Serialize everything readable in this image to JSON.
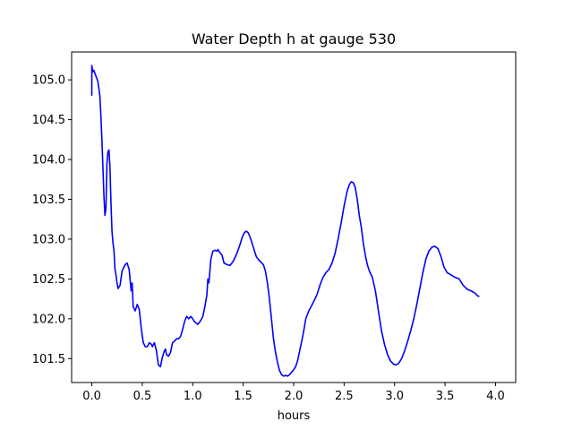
{
  "chart_data": {
    "type": "line",
    "title": "Water Depth h at gauge 530",
    "xlabel": "hours",
    "ylabel": "",
    "xlim": [
      -0.2,
      4.2
    ],
    "ylim": [
      101.2,
      105.35
    ],
    "xticks": [
      0.0,
      0.5,
      1.0,
      1.5,
      2.0,
      2.5,
      3.0,
      3.5,
      4.0
    ],
    "xtick_labels": [
      "0.0",
      "0.5",
      "1.0",
      "1.5",
      "2.0",
      "2.5",
      "3.0",
      "3.5",
      "4.0"
    ],
    "yticks": [
      101.5,
      102.0,
      102.5,
      103.0,
      103.5,
      104.0,
      104.5,
      105.0
    ],
    "ytick_labels": [
      "101.5",
      "102.0",
      "102.5",
      "103.0",
      "103.5",
      "104.0",
      "104.5",
      "105.0"
    ],
    "grid": false,
    "series": [
      {
        "color": "#0000ff",
        "points": [
          [
            0.0,
            104.8
          ],
          [
            0.0,
            105.18
          ],
          [
            0.01,
            105.1
          ],
          [
            0.02,
            105.12
          ],
          [
            0.04,
            105.05
          ],
          [
            0.06,
            104.98
          ],
          [
            0.08,
            104.8
          ],
          [
            0.09,
            104.55
          ],
          [
            0.1,
            104.25
          ],
          [
            0.11,
            103.9
          ],
          [
            0.12,
            103.55
          ],
          [
            0.13,
            103.3
          ],
          [
            0.14,
            103.38
          ],
          [
            0.15,
            103.95
          ],
          [
            0.16,
            104.1
          ],
          [
            0.17,
            104.12
          ],
          [
            0.18,
            103.9
          ],
          [
            0.19,
            103.45
          ],
          [
            0.2,
            103.1
          ],
          [
            0.21,
            102.95
          ],
          [
            0.22,
            102.85
          ],
          [
            0.23,
            102.62
          ],
          [
            0.24,
            102.55
          ],
          [
            0.25,
            102.45
          ],
          [
            0.26,
            102.38
          ],
          [
            0.28,
            102.42
          ],
          [
            0.3,
            102.6
          ],
          [
            0.33,
            102.68
          ],
          [
            0.35,
            102.7
          ],
          [
            0.37,
            102.62
          ],
          [
            0.39,
            102.35
          ],
          [
            0.4,
            102.45
          ],
          [
            0.41,
            102.15
          ],
          [
            0.43,
            102.1
          ],
          [
            0.45,
            102.18
          ],
          [
            0.47,
            102.12
          ],
          [
            0.49,
            101.88
          ],
          [
            0.51,
            101.7
          ],
          [
            0.53,
            101.65
          ],
          [
            0.55,
            101.65
          ],
          [
            0.57,
            101.7
          ],
          [
            0.59,
            101.68
          ],
          [
            0.6,
            101.65
          ],
          [
            0.62,
            101.7
          ],
          [
            0.64,
            101.6
          ],
          [
            0.66,
            101.42
          ],
          [
            0.68,
            101.4
          ],
          [
            0.7,
            101.52
          ],
          [
            0.72,
            101.6
          ],
          [
            0.73,
            101.62
          ],
          [
            0.74,
            101.55
          ],
          [
            0.76,
            101.53
          ],
          [
            0.78,
            101.58
          ],
          [
            0.8,
            101.7
          ],
          [
            0.82,
            101.72
          ],
          [
            0.84,
            101.75
          ],
          [
            0.86,
            101.75
          ],
          [
            0.88,
            101.78
          ],
          [
            0.9,
            101.87
          ],
          [
            0.92,
            101.97
          ],
          [
            0.94,
            102.03
          ],
          [
            0.96,
            102.0
          ],
          [
            0.98,
            102.03
          ],
          [
            1.0,
            102.0
          ],
          [
            1.02,
            101.96
          ],
          [
            1.05,
            101.93
          ],
          [
            1.08,
            101.98
          ],
          [
            1.1,
            102.03
          ],
          [
            1.12,
            102.15
          ],
          [
            1.14,
            102.3
          ],
          [
            1.15,
            102.5
          ],
          [
            1.16,
            102.45
          ],
          [
            1.17,
            102.6
          ],
          [
            1.18,
            102.75
          ],
          [
            1.2,
            102.85
          ],
          [
            1.22,
            102.86
          ],
          [
            1.24,
            102.85
          ],
          [
            1.25,
            102.87
          ],
          [
            1.27,
            102.83
          ],
          [
            1.29,
            102.8
          ],
          [
            1.31,
            102.7
          ],
          [
            1.34,
            102.68
          ],
          [
            1.37,
            102.67
          ],
          [
            1.4,
            102.72
          ],
          [
            1.43,
            102.8
          ],
          [
            1.46,
            102.9
          ],
          [
            1.49,
            103.02
          ],
          [
            1.51,
            103.08
          ],
          [
            1.53,
            103.1
          ],
          [
            1.55,
            103.08
          ],
          [
            1.57,
            103.02
          ],
          [
            1.6,
            102.9
          ],
          [
            1.63,
            102.78
          ],
          [
            1.66,
            102.73
          ],
          [
            1.7,
            102.68
          ],
          [
            1.72,
            102.6
          ],
          [
            1.74,
            102.45
          ],
          [
            1.76,
            102.25
          ],
          [
            1.78,
            102.0
          ],
          [
            1.8,
            101.75
          ],
          [
            1.82,
            101.58
          ],
          [
            1.84,
            101.45
          ],
          [
            1.86,
            101.35
          ],
          [
            1.88,
            101.3
          ],
          [
            1.9,
            101.28
          ],
          [
            1.92,
            101.29
          ],
          [
            1.94,
            101.28
          ],
          [
            1.96,
            101.3
          ],
          [
            1.98,
            101.33
          ],
          [
            2.0,
            101.36
          ],
          [
            2.02,
            101.4
          ],
          [
            2.04,
            101.48
          ],
          [
            2.06,
            101.6
          ],
          [
            2.08,
            101.72
          ],
          [
            2.1,
            101.85
          ],
          [
            2.12,
            102.0
          ],
          [
            2.15,
            102.1
          ],
          [
            2.18,
            102.17
          ],
          [
            2.2,
            102.22
          ],
          [
            2.23,
            102.3
          ],
          [
            2.26,
            102.42
          ],
          [
            2.29,
            102.52
          ],
          [
            2.32,
            102.58
          ],
          [
            2.35,
            102.62
          ],
          [
            2.38,
            102.7
          ],
          [
            2.41,
            102.82
          ],
          [
            2.44,
            103.0
          ],
          [
            2.47,
            103.2
          ],
          [
            2.5,
            103.42
          ],
          [
            2.53,
            103.6
          ],
          [
            2.55,
            103.68
          ],
          [
            2.57,
            103.72
          ],
          [
            2.59,
            103.71
          ],
          [
            2.61,
            103.65
          ],
          [
            2.63,
            103.5
          ],
          [
            2.65,
            103.3
          ],
          [
            2.67,
            103.15
          ],
          [
            2.69,
            102.95
          ],
          [
            2.71,
            102.8
          ],
          [
            2.73,
            102.68
          ],
          [
            2.75,
            102.6
          ],
          [
            2.78,
            102.52
          ],
          [
            2.81,
            102.35
          ],
          [
            2.84,
            102.1
          ],
          [
            2.87,
            101.85
          ],
          [
            2.9,
            101.68
          ],
          [
            2.93,
            101.55
          ],
          [
            2.96,
            101.47
          ],
          [
            2.99,
            101.43
          ],
          [
            3.01,
            101.42
          ],
          [
            3.04,
            101.44
          ],
          [
            3.07,
            101.5
          ],
          [
            3.1,
            101.6
          ],
          [
            3.13,
            101.72
          ],
          [
            3.16,
            101.85
          ],
          [
            3.19,
            102.0
          ],
          [
            3.22,
            102.18
          ],
          [
            3.25,
            102.38
          ],
          [
            3.28,
            102.58
          ],
          [
            3.31,
            102.75
          ],
          [
            3.34,
            102.85
          ],
          [
            3.37,
            102.9
          ],
          [
            3.4,
            102.91
          ],
          [
            3.43,
            102.88
          ],
          [
            3.46,
            102.78
          ],
          [
            3.49,
            102.65
          ],
          [
            3.52,
            102.58
          ],
          [
            3.56,
            102.55
          ],
          [
            3.6,
            102.52
          ],
          [
            3.64,
            102.5
          ],
          [
            3.68,
            102.42
          ],
          [
            3.72,
            102.37
          ],
          [
            3.76,
            102.35
          ],
          [
            3.8,
            102.32
          ],
          [
            3.82,
            102.29
          ],
          [
            3.84,
            102.28
          ]
        ]
      }
    ]
  }
}
